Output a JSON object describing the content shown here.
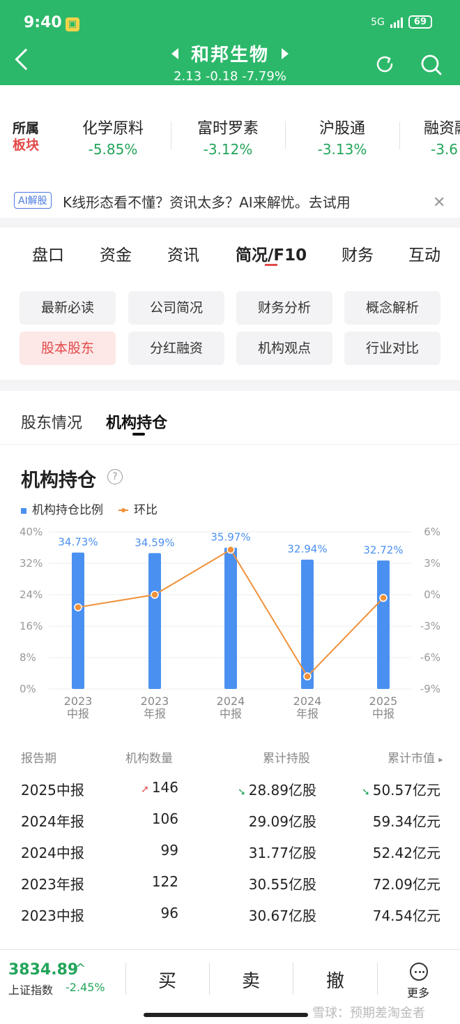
{
  "status": {
    "time": "9:40",
    "net": "5G",
    "battery": "69"
  },
  "header": {
    "stock_name": "和邦生物",
    "quote": "2.13 -0.18 -7.79%"
  },
  "sector": {
    "label_top": "所属",
    "label_bottom": "板块",
    "items": [
      {
        "name": "化学原料",
        "change": "-5.85%"
      },
      {
        "name": "富时罗素",
        "change": "-3.12%"
      },
      {
        "name": "沪股通",
        "change": "-3.13%"
      },
      {
        "name": "融资融券",
        "change": "-3.6"
      }
    ]
  },
  "ai_banner": {
    "badge": "AI解股",
    "text": "K线形态看不懂？资讯太多？AI来解忧。去试用"
  },
  "main_tabs": [
    "盘口",
    "资金",
    "资讯",
    "简况/F10",
    "财务",
    "互动"
  ],
  "pills": [
    "最新必读",
    "公司简况",
    "财务分析",
    "概念解析",
    "股本股东",
    "分红融资",
    "机构观点",
    "行业对比"
  ],
  "sub_tabs": [
    "股东情况",
    "机构持仓"
  ],
  "section_title": "机构持仓",
  "legend": {
    "bar": "机构持仓比例",
    "line": "环比"
  },
  "chart_data": {
    "type": "bar",
    "categories": [
      "2023中报",
      "2023年报",
      "2024中报",
      "2024年报",
      "2025中报"
    ],
    "category_lines": [
      [
        "2023",
        "中报"
      ],
      [
        "2023",
        "年报"
      ],
      [
        "2024",
        "中报"
      ],
      [
        "2024",
        "年报"
      ],
      [
        "2025",
        "中报"
      ]
    ],
    "series": [
      {
        "name": "机构持仓比例",
        "type": "bar",
        "values": [
          34.73,
          34.59,
          35.97,
          32.94,
          32.72
        ],
        "labels": [
          "34.73%",
          "34.59%",
          "35.97%",
          "32.94%",
          "32.72%"
        ]
      },
      {
        "name": "环比",
        "type": "line",
        "values": [
          -1.2,
          0.0,
          4.3,
          -7.8,
          -0.3
        ]
      }
    ],
    "y_left_ticks": [
      "40%",
      "32%",
      "24%",
      "16%",
      "8%",
      "0%"
    ],
    "y_left_lim": [
      0,
      40
    ],
    "y_right_ticks": [
      "6%",
      "3%",
      "0%",
      "-3%",
      "-6%",
      "-9%"
    ],
    "y_right_lim": [
      -9,
      6
    ],
    "colors": {
      "bar": "#4a90f0",
      "line": "#f0913a"
    }
  },
  "table": {
    "headers": [
      "报告期",
      "机构数量",
      "累计持股",
      "累计市值"
    ],
    "rows": [
      {
        "period": "2025中报",
        "count": "146",
        "shares": "28.89亿股",
        "value": "50.57亿元",
        "count_dir": "up",
        "shares_dir": "down",
        "value_dir": "down"
      },
      {
        "period": "2024年报",
        "count": "106",
        "shares": "29.09亿股",
        "value": "59.34亿元"
      },
      {
        "period": "2024中报",
        "count": "99",
        "shares": "31.77亿股",
        "value": "52.42亿元"
      },
      {
        "period": "2023年报",
        "count": "122",
        "shares": "30.55亿股",
        "value": "72.09亿元"
      },
      {
        "period": "2023中报",
        "count": "96",
        "shares": "30.67亿股",
        "value": "74.54亿元"
      }
    ]
  },
  "bottom": {
    "index_value": "3834.89",
    "index_name": "上证指数",
    "index_change": "-2.45%",
    "buy": "买",
    "sell": "卖",
    "cancel": "撤",
    "more": "更多",
    "watermark": "雪球：预期差淘金者"
  }
}
